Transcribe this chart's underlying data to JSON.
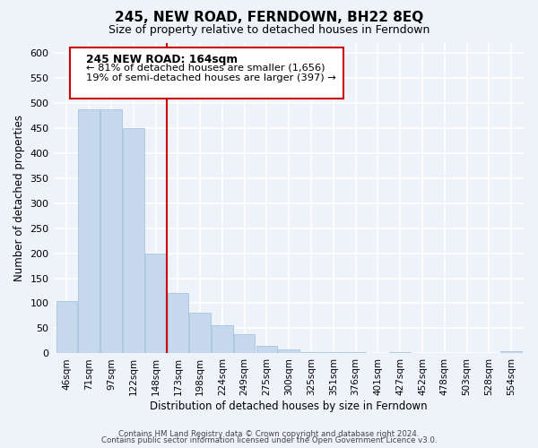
{
  "title": "245, NEW ROAD, FERNDOWN, BH22 8EQ",
  "subtitle": "Size of property relative to detached houses in Ferndown",
  "xlabel": "Distribution of detached houses by size in Ferndown",
  "ylabel": "Number of detached properties",
  "bar_values": [
    105,
    487,
    487,
    450,
    200,
    120,
    82,
    57,
    38,
    15,
    8,
    3,
    3,
    2,
    0,
    2,
    0,
    0,
    0,
    0,
    5
  ],
  "bar_labels": [
    "46sqm",
    "71sqm",
    "97sqm",
    "122sqm",
    "148sqm",
    "173sqm",
    "198sqm",
    "224sqm",
    "249sqm",
    "275sqm",
    "300sqm",
    "325sqm",
    "351sqm",
    "376sqm",
    "401sqm",
    "427sqm",
    "452sqm",
    "478sqm",
    "503sqm",
    "528sqm",
    "554sqm"
  ],
  "bar_color": "#c5d8ed",
  "bar_edge_color": "#a8c4e0",
  "subject_line_color": "#cc0000",
  "annotation_title": "245 NEW ROAD: 164sqm",
  "annotation_line1": "← 81% of detached houses are smaller (1,656)",
  "annotation_line2": "19% of semi-detached houses are larger (397) →",
  "annotation_box_color": "#ffffff",
  "annotation_box_edge": "#cc0000",
  "ylim": [
    0,
    620
  ],
  "yticks": [
    0,
    50,
    100,
    150,
    200,
    250,
    300,
    350,
    400,
    450,
    500,
    550,
    600
  ],
  "footer1": "Contains HM Land Registry data © Crown copyright and database right 2024.",
  "footer2": "Contains public sector information licensed under the Open Government Licence v3.0.",
  "bg_color": "#eef2f9",
  "plot_bg_color": "#eef2f9",
  "grid_color": "#ffffff"
}
